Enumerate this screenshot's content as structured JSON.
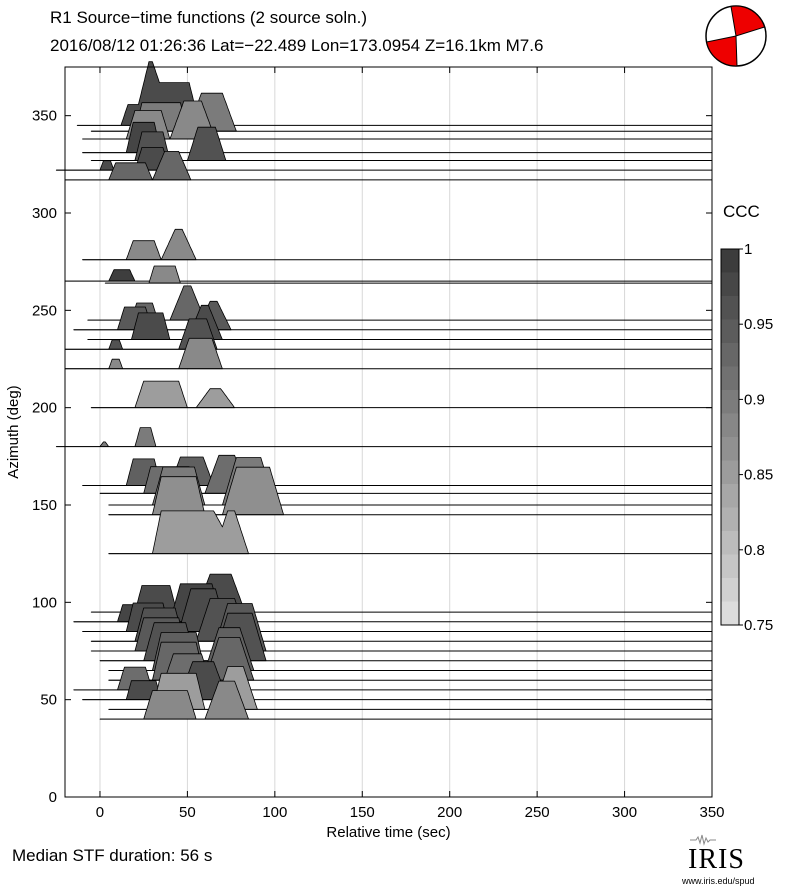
{
  "title_line1": "R1 Source−time functions (2 source soln.)",
  "title_line2": "2016/08/12 01:26:36  Lat=−22.489 Lon=173.0954  Z=16.1km  M7.6",
  "footer_text": "Median STF duration: 56 s",
  "logo": {
    "text": "IRIS",
    "url": "www.iris.edu/spud"
  },
  "colors": {
    "beachball_fill": "#ee0000",
    "baseline": "#000000",
    "grid": "#d8d8d8"
  },
  "chart_data": {
    "type": "area",
    "title": "R1 Source−time functions (2 source soln.)",
    "xlabel": "Relative time (sec)",
    "ylabel": "Azimuth (deg)",
    "xlim": [
      -20,
      350
    ],
    "ylim": [
      0,
      375
    ],
    "xticks": [
      0,
      50,
      100,
      150,
      200,
      250,
      300,
      350
    ],
    "yticks": [
      0,
      50,
      100,
      150,
      200,
      250,
      300,
      350
    ],
    "grid": true,
    "colorbar": {
      "label": "CCC",
      "range": [
        0.75,
        1.0
      ],
      "ticks": [
        "0.75",
        "0.8",
        "0.85",
        "0.9",
        "0.95",
        "1"
      ]
    },
    "traces": [
      {
        "azimuth": 345,
        "ccc": 0.97,
        "pulses": [
          [
            12,
            22,
            4,
            22
          ],
          [
            22,
            35,
            6,
            45
          ]
        ]
      },
      {
        "azimuth": 342,
        "ccc": 0.9,
        "pulses": [
          [
            20,
            30,
            4,
            30
          ],
          [
            50,
            28,
            8,
            40
          ]
        ]
      },
      {
        "azimuth": 338,
        "ccc": 0.88,
        "pulses": [
          [
            15,
            25,
            5,
            30
          ],
          [
            40,
            26,
            8,
            40
          ]
        ]
      },
      {
        "azimuth": 331,
        "ccc": 0.98,
        "pulses": [
          [
            15,
            20,
            4,
            32
          ]
        ]
      },
      {
        "azimuth": 327,
        "ccc": 0.96,
        "pulses": [
          [
            20,
            20,
            4,
            30
          ],
          [
            50,
            22,
            6,
            35
          ]
        ]
      },
      {
        "azimuth": 322,
        "ccc": 0.97,
        "pulses": [
          [
            0,
            8,
            2,
            10
          ],
          [
            20,
            20,
            4,
            24
          ]
        ]
      },
      {
        "azimuth": 317,
        "ccc": 0.93,
        "pulses": [
          [
            5,
            25,
            4,
            18
          ],
          [
            30,
            22,
            7,
            30
          ]
        ]
      },
      {
        "azimuth": 276,
        "ccc": 0.88,
        "pulses": [
          [
            15,
            20,
            4,
            20
          ],
          [
            35,
            20,
            8,
            32
          ]
        ]
      },
      {
        "azimuth": 265,
        "ccc": 0.99,
        "pulses": [
          [
            5,
            15,
            3,
            12
          ]
        ]
      },
      {
        "azimuth": 264,
        "ccc": 0.88,
        "pulses": [
          [
            28,
            18,
            3,
            18
          ]
        ]
      },
      {
        "azimuth": 245,
        "ccc": 0.93,
        "pulses": [
          [
            18,
            15,
            3,
            18
          ],
          [
            40,
            20,
            8,
            36
          ]
        ]
      },
      {
        "azimuth": 240,
        "ccc": 0.95,
        "pulses": [
          [
            10,
            20,
            4,
            24
          ],
          [
            55,
            20,
            8,
            30
          ]
        ]
      },
      {
        "azimuth": 235,
        "ccc": 0.97,
        "pulses": [
          [
            18,
            22,
            4,
            28
          ],
          [
            50,
            20,
            8,
            36
          ]
        ]
      },
      {
        "azimuth": 230,
        "ccc": 0.96,
        "pulses": [
          [
            5,
            8,
            2,
            10
          ],
          [
            45,
            22,
            6,
            32
          ]
        ]
      },
      {
        "azimuth": 220,
        "ccc": 0.88,
        "pulses": [
          [
            5,
            8,
            2,
            10
          ],
          [
            45,
            25,
            6,
            32
          ]
        ]
      },
      {
        "azimuth": 200,
        "ccc": 0.85,
        "pulses": [
          [
            20,
            30,
            5,
            28
          ],
          [
            55,
            22,
            8,
            20
          ]
        ]
      },
      {
        "azimuth": 180,
        "ccc": 0.9,
        "pulses": [
          [
            0,
            5,
            2,
            5
          ],
          [
            20,
            12,
            3,
            20
          ]
        ]
      },
      {
        "azimuth": 160,
        "ccc": 0.94,
        "pulses": [
          [
            15,
            20,
            4,
            28
          ],
          [
            40,
            25,
            6,
            30
          ]
        ]
      },
      {
        "azimuth": 156,
        "ccc": 0.92,
        "pulses": [
          [
            25,
            30,
            4,
            28
          ],
          [
            60,
            25,
            8,
            40
          ]
        ]
      },
      {
        "azimuth": 150,
        "ccc": 0.9,
        "pulses": [
          [
            30,
            30,
            6,
            40
          ],
          [
            70,
            30,
            8,
            50
          ]
        ]
      },
      {
        "azimuth": 145,
        "ccc": 0.87,
        "pulses": [
          [
            30,
            30,
            5,
            40
          ],
          [
            70,
            35,
            8,
            50
          ]
        ]
      },
      {
        "azimuth": 125,
        "ccc": 0.85,
        "pulses": [
          [
            30,
            40,
            5,
            45
          ],
          [
            65,
            20,
            8,
            45
          ]
        ]
      },
      {
        "azimuth": 95,
        "ccc": 0.97,
        "pulses": [
          [
            20,
            24,
            4,
            28
          ],
          [
            55,
            28,
            8,
            40
          ]
        ]
      },
      {
        "azimuth": 90,
        "ccc": 0.98,
        "pulses": [
          [
            10,
            25,
            3,
            18
          ],
          [
            40,
            30,
            6,
            40
          ]
        ]
      },
      {
        "azimuth": 85,
        "ccc": 0.97,
        "pulses": [
          [
            15,
            25,
            4,
            30
          ],
          [
            45,
            28,
            7,
            45
          ]
        ]
      },
      {
        "azimuth": 80,
        "ccc": 0.96,
        "pulses": [
          [
            20,
            28,
            5,
            35
          ],
          [
            55,
            30,
            8,
            45
          ]
        ]
      },
      {
        "azimuth": 75,
        "ccc": 0.95,
        "pulses": [
          [
            20,
            30,
            5,
            35
          ],
          [
            65,
            30,
            8,
            50
          ]
        ]
      },
      {
        "azimuth": 70,
        "ccc": 0.96,
        "pulses": [
          [
            25,
            30,
            6,
            40
          ],
          [
            65,
            30,
            8,
            50
          ]
        ]
      },
      {
        "azimuth": 65,
        "ccc": 0.94,
        "pulses": [
          [
            30,
            30,
            5,
            40
          ],
          [
            60,
            28,
            8,
            45
          ]
        ]
      },
      {
        "azimuth": 60,
        "ccc": 0.93,
        "pulses": [
          [
            30,
            30,
            5,
            40
          ],
          [
            60,
            28,
            8,
            45
          ]
        ]
      },
      {
        "azimuth": 55,
        "ccc": 0.92,
        "pulses": [
          [
            10,
            20,
            4,
            24
          ],
          [
            35,
            30,
            7,
            38
          ]
        ]
      },
      {
        "azimuth": 50,
        "ccc": 0.97,
        "pulses": [
          [
            15,
            20,
            3,
            20
          ],
          [
            45,
            28,
            8,
            40
          ]
        ]
      },
      {
        "azimuth": 45,
        "ccc": 0.85,
        "pulses": [
          [
            30,
            30,
            5,
            38
          ],
          [
            65,
            25,
            8,
            45
          ]
        ]
      },
      {
        "azimuth": 40,
        "ccc": 0.88,
        "pulses": [
          [
            25,
            30,
            5,
            30
          ],
          [
            60,
            25,
            8,
            40
          ]
        ]
      }
    ]
  }
}
